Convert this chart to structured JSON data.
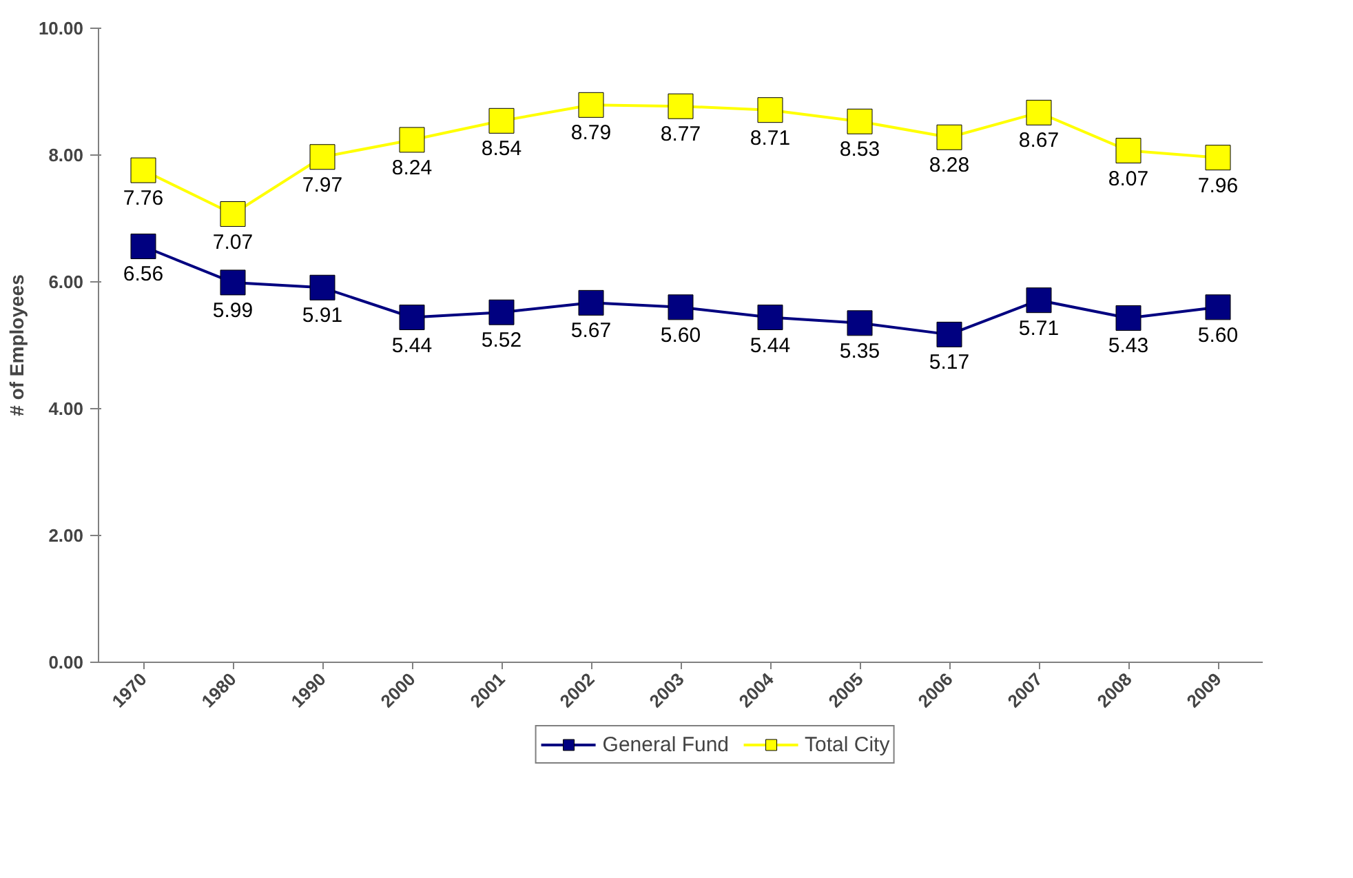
{
  "chart_data": {
    "type": "line",
    "ylabel": "# of Employees",
    "categories": [
      "1970",
      "1980",
      "1990",
      "2000",
      "2001",
      "2002",
      "2003",
      "2004",
      "2005",
      "2006",
      "2007",
      "2008",
      "2009"
    ],
    "series": [
      {
        "name": "General Fund",
        "color": "#000080",
        "values": [
          6.56,
          5.99,
          5.91,
          5.44,
          5.52,
          5.67,
          5.6,
          5.44,
          5.35,
          5.17,
          5.71,
          5.43,
          5.6
        ],
        "value_labels": [
          "6.56",
          "5.99",
          "5.91",
          "5.44",
          "5.52",
          "5.67",
          "5.60",
          "5.44",
          "5.35",
          "5.17",
          "5.71",
          "5.43",
          "5.60"
        ]
      },
      {
        "name": "Total City",
        "color": "#ffff00",
        "values": [
          7.76,
          7.07,
          7.97,
          8.24,
          8.54,
          8.79,
          8.77,
          8.71,
          8.53,
          8.28,
          8.67,
          8.07,
          7.96
        ],
        "value_labels": [
          "7.76",
          "7.07",
          "7.97",
          "8.24",
          "8.54",
          "8.79",
          "8.77",
          "8.71",
          "8.53",
          "8.28",
          "8.67",
          "8.07",
          "7.96"
        ]
      }
    ],
    "ylim": [
      0,
      10
    ],
    "yticks": [
      {
        "value": 0,
        "label": "0.00"
      },
      {
        "value": 2,
        "label": "2.00"
      },
      {
        "value": 4,
        "label": "4.00"
      },
      {
        "value": 6,
        "label": "6.00"
      },
      {
        "value": 8,
        "label": "8.00"
      },
      {
        "value": 10,
        "label": "10.00"
      }
    ],
    "marker": "square",
    "line_style": "solid",
    "grid": false,
    "legend": "bottom"
  }
}
